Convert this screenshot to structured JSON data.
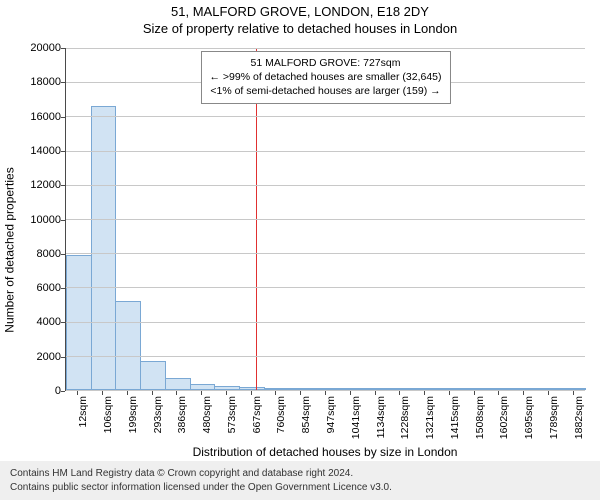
{
  "title": "51, MALFORD GROVE, LONDON, E18 2DY",
  "subtitle": "Size of property relative to detached houses in London",
  "ylabel": "Number of detached properties",
  "xlabel": "Distribution of detached houses by size in London",
  "chart": {
    "type": "histogram",
    "ylim": [
      0,
      20000
    ],
    "yticks": [
      0,
      2000,
      4000,
      6000,
      8000,
      10000,
      12000,
      14000,
      16000,
      18000,
      20000
    ],
    "xticks": [
      "12sqm",
      "106sqm",
      "199sqm",
      "293sqm",
      "386sqm",
      "480sqm",
      "573sqm",
      "667sqm",
      "760sqm",
      "854sqm",
      "947sqm",
      "1041sqm",
      "1134sqm",
      "1228sqm",
      "1321sqm",
      "1415sqm",
      "1508sqm",
      "1602sqm",
      "1695sqm",
      "1789sqm",
      "1882sqm"
    ],
    "values": [
      7900,
      16600,
      5200,
      1700,
      700,
      350,
      250,
      150,
      100,
      70,
      50,
      40,
      30,
      25,
      20,
      15,
      12,
      10,
      8,
      6,
      5
    ],
    "bar_fill": "#d1e3f3",
    "bar_stroke": "#7aa8d4",
    "grid_color": "#c8c8c8",
    "axis_color": "#4a4a4a",
    "background": "#ffffff",
    "refline_x_index": 7.7,
    "refline_color": "#e03030"
  },
  "annotation": {
    "line1": "51 MALFORD GROVE: 727sqm",
    "line2": "← >99% of detached houses are smaller (32,645)",
    "line3": "<1% of semi-detached houses are larger (159) →"
  },
  "footer": {
    "line1": "Contains HM Land Registry data © Crown copyright and database right 2024.",
    "line2": "Contains public sector information licensed under the Open Government Licence v3.0."
  }
}
